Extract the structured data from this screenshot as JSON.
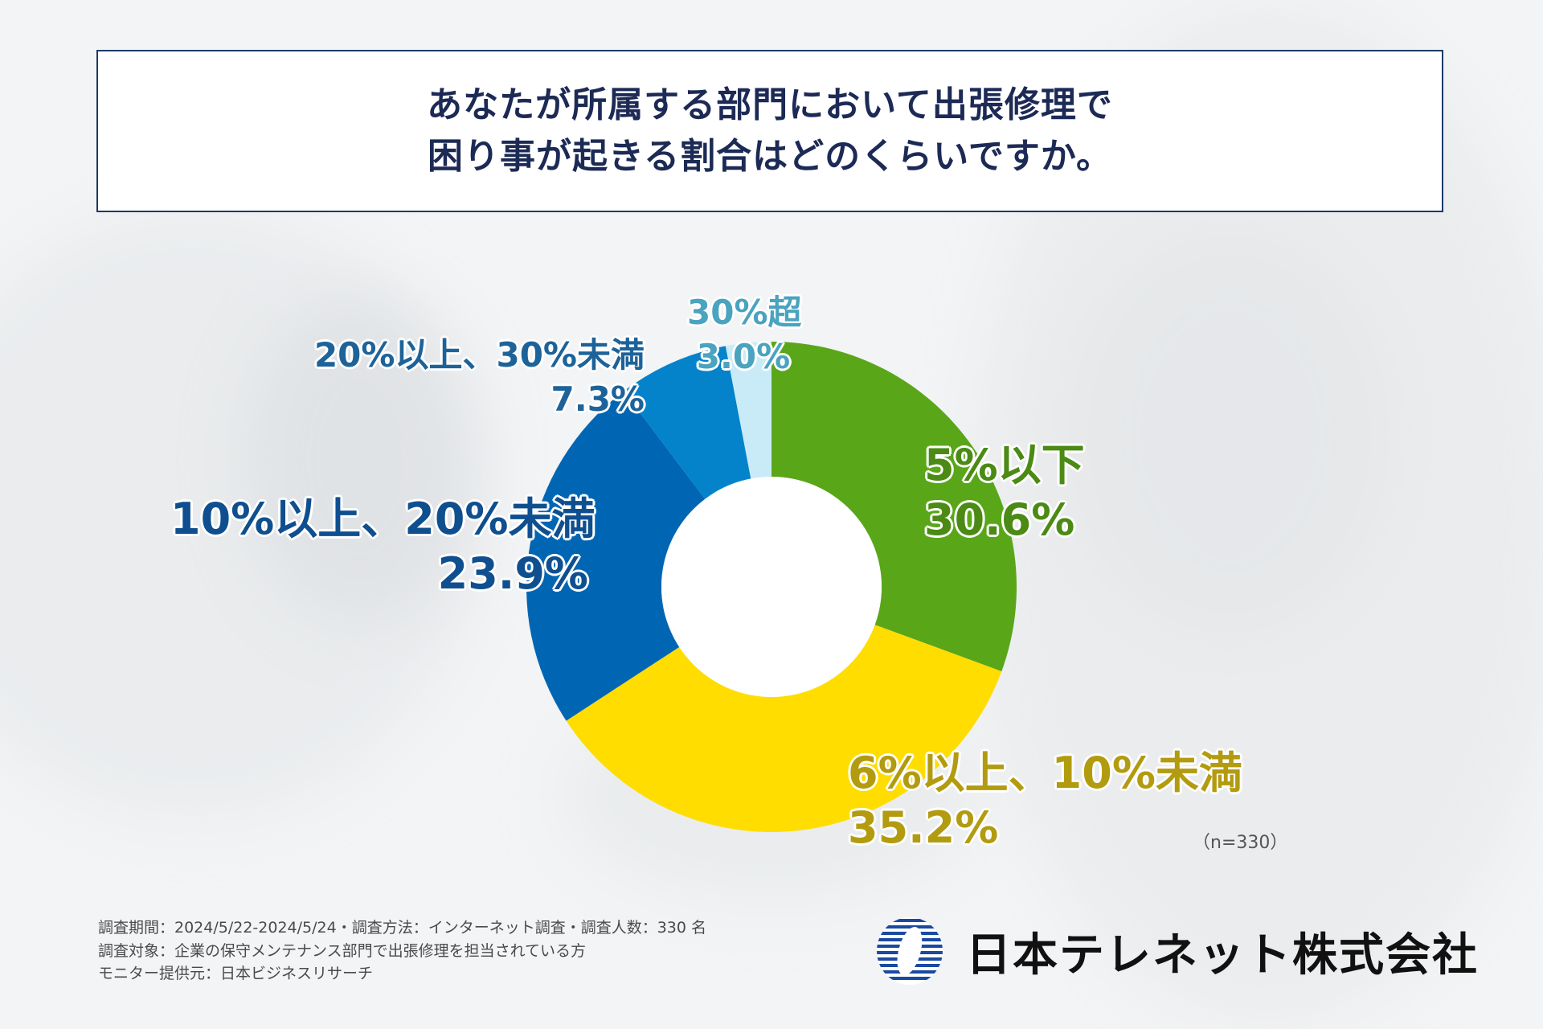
{
  "title": {
    "line1": "あなたが所属する部門において出張修理で",
    "line2": "困り事が起きる割合はどのくらいですか。"
  },
  "chart_data": {
    "type": "pie",
    "variant": "donut",
    "title": "あなたが所属する部門において出張修理で困り事が起きる割合はどのくらいですか。",
    "categories": [
      "5%以下",
      "6%以上、10%未満",
      "10%以上、20%未満",
      "20%以上、30%未満",
      "30%超"
    ],
    "values": [
      30.6,
      35.2,
      23.9,
      7.3,
      3.0
    ],
    "value_labels": [
      "30.6%",
      "35.2%",
      "23.9%",
      "7.3%",
      "3.0%"
    ],
    "colors": [
      "#5aa619",
      "#ffdd00",
      "#0066b4",
      "#0583ca",
      "#c8ebf7"
    ],
    "label_colors": [
      "#4b8a14",
      "#b39b10",
      "#0f4f8f",
      "#1d6399",
      "#4aa3bf"
    ],
    "start": "12 o'clock",
    "direction": "clockwise",
    "sample": "（n=330）"
  },
  "footer": {
    "line1": "調査期間：2024/5/22-2024/5/24・調査方法：インターネット調査・調査人数：330 名",
    "line2": "調査対象：企業の保守メンテナンス部門で出張修理を担当されている方",
    "line3": "モニター提供元：日本ビジネスリサーチ"
  },
  "logo": {
    "company": "日本テレネット株式会社"
  }
}
